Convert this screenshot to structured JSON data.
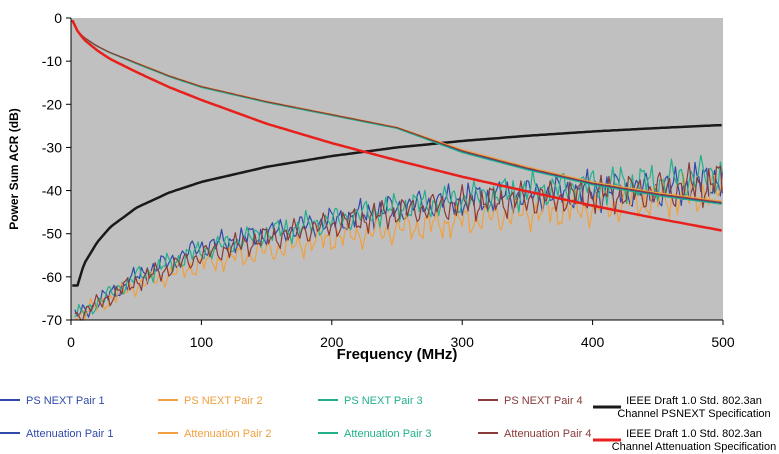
{
  "chart_data": {
    "type": "line",
    "title": "",
    "xlabel": "Frequency (MHz)",
    "ylabel": "Power Sum ACR (dB)",
    "xlim": [
      0,
      500
    ],
    "ylim": [
      -70,
      0
    ],
    "x_ticks": [
      "0",
      "100",
      "200",
      "300",
      "400",
      "500"
    ],
    "y_ticks": [
      "0",
      "-10",
      "-20",
      "-30",
      "-40",
      "-50",
      "-60",
      "-70"
    ],
    "plot_background": "#c0c0c0",
    "grid": false,
    "legend_position": "bottom",
    "series": [
      {
        "name": "PS NEXT Pair 1",
        "color": "#2f4aa8",
        "kind": "noisy",
        "trend": [
          [
            5,
            -69
          ],
          [
            50,
            -60
          ],
          [
            100,
            -53
          ],
          [
            150,
            -50
          ],
          [
            200,
            -47
          ],
          [
            250,
            -44
          ],
          [
            300,
            -42
          ],
          [
            350,
            -41
          ],
          [
            400,
            -40
          ],
          [
            450,
            -40
          ],
          [
            500,
            -37
          ]
        ]
      },
      {
        "name": "PS NEXT Pair 2",
        "color": "#f0a040",
        "kind": "noisy",
        "trend": [
          [
            5,
            -69
          ],
          [
            50,
            -62
          ],
          [
            100,
            -57
          ],
          [
            150,
            -54
          ],
          [
            200,
            -51
          ],
          [
            250,
            -49
          ],
          [
            300,
            -47
          ],
          [
            350,
            -45
          ],
          [
            400,
            -44
          ],
          [
            450,
            -42
          ],
          [
            500,
            -40
          ]
        ]
      },
      {
        "name": "PS NEXT Pair 3",
        "color": "#22b08a",
        "kind": "noisy",
        "trend": [
          [
            5,
            -69
          ],
          [
            50,
            -60
          ],
          [
            100,
            -54
          ],
          [
            150,
            -50
          ],
          [
            200,
            -47
          ],
          [
            250,
            -44
          ],
          [
            300,
            -42
          ],
          [
            350,
            -40
          ],
          [
            400,
            -39
          ],
          [
            450,
            -38
          ],
          [
            500,
            -36
          ]
        ]
      },
      {
        "name": "PS NEXT Pair 4",
        "color": "#8a3a3a",
        "kind": "noisy",
        "trend": [
          [
            5,
            -69
          ],
          [
            50,
            -61
          ],
          [
            100,
            -55
          ],
          [
            150,
            -51
          ],
          [
            200,
            -48
          ],
          [
            250,
            -45
          ],
          [
            300,
            -43
          ],
          [
            350,
            -42
          ],
          [
            400,
            -41
          ],
          [
            450,
            -40
          ],
          [
            500,
            -38
          ]
        ]
      },
      {
        "name": "IEEE Draft 1.0 Std. 802.3an Channel PSNEXT Specification",
        "color": "#1a1a1a",
        "kind": "smooth",
        "points": [
          [
            1,
            -62
          ],
          [
            5,
            -62
          ],
          [
            10,
            -57
          ],
          [
            20,
            -52
          ],
          [
            30,
            -48.5
          ],
          [
            50,
            -44
          ],
          [
            75,
            -40.5
          ],
          [
            100,
            -38
          ],
          [
            150,
            -34.5
          ],
          [
            200,
            -32
          ],
          [
            250,
            -30
          ],
          [
            300,
            -28.5
          ],
          [
            350,
            -27.3
          ],
          [
            400,
            -26.3
          ],
          [
            450,
            -25.5
          ],
          [
            500,
            -24.8
          ]
        ]
      },
      {
        "name": "Attenuation Pair 1",
        "color": "#2f4aa8",
        "kind": "smooth",
        "points": [
          [
            1,
            -0.5
          ],
          [
            5,
            -3
          ],
          [
            10,
            -4.5
          ],
          [
            20,
            -6.5
          ],
          [
            30,
            -8
          ],
          [
            50,
            -10.5
          ],
          [
            75,
            -13.5
          ],
          [
            100,
            -16
          ],
          [
            150,
            -19.5
          ],
          [
            200,
            -22.5
          ],
          [
            250,
            -25.5
          ],
          [
            300,
            -31
          ],
          [
            350,
            -35
          ],
          [
            400,
            -38.5
          ],
          [
            450,
            -41
          ],
          [
            500,
            -43
          ]
        ]
      },
      {
        "name": "Attenuation Pair 2",
        "color": "#f0a040",
        "kind": "smooth",
        "points": [
          [
            1,
            -0.5
          ],
          [
            5,
            -3
          ],
          [
            10,
            -4.5
          ],
          [
            20,
            -6.5
          ],
          [
            30,
            -8
          ],
          [
            50,
            -10.3
          ],
          [
            75,
            -13.3
          ],
          [
            100,
            -15.8
          ],
          [
            150,
            -19.3
          ],
          [
            200,
            -22.3
          ],
          [
            250,
            -25.3
          ],
          [
            300,
            -30.5
          ],
          [
            350,
            -34.5
          ],
          [
            400,
            -38
          ],
          [
            450,
            -40.5
          ],
          [
            500,
            -42.5
          ]
        ]
      },
      {
        "name": "Attenuation Pair 3",
        "color": "#22b08a",
        "kind": "smooth",
        "points": [
          [
            1,
            -0.5
          ],
          [
            5,
            -3
          ],
          [
            10,
            -4.6
          ],
          [
            20,
            -6.6
          ],
          [
            30,
            -8.1
          ],
          [
            50,
            -10.6
          ],
          [
            75,
            -13.6
          ],
          [
            100,
            -16.1
          ],
          [
            150,
            -19.6
          ],
          [
            200,
            -22.6
          ],
          [
            250,
            -25.6
          ],
          [
            300,
            -31.2
          ],
          [
            350,
            -35.2
          ],
          [
            400,
            -38.7
          ],
          [
            450,
            -41.2
          ],
          [
            500,
            -43.2
          ]
        ]
      },
      {
        "name": "Attenuation Pair 4",
        "color": "#8a3a3a",
        "kind": "smooth",
        "points": [
          [
            1,
            -0.5
          ],
          [
            5,
            -3
          ],
          [
            10,
            -4.5
          ],
          [
            20,
            -6.5
          ],
          [
            30,
            -8
          ],
          [
            50,
            -10.4
          ],
          [
            75,
            -13.4
          ],
          [
            100,
            -15.9
          ],
          [
            150,
            -19.4
          ],
          [
            200,
            -22.4
          ],
          [
            250,
            -25.4
          ],
          [
            300,
            -30.8
          ],
          [
            350,
            -34.8
          ],
          [
            400,
            -38.3
          ],
          [
            450,
            -40.8
          ],
          [
            500,
            -42.8
          ]
        ]
      },
      {
        "name": "IEEE Draft 1.0 Std. 802.3an Channel Attenuation Specification",
        "color": "#e8201c",
        "kind": "smooth",
        "points": [
          [
            1,
            -0.5
          ],
          [
            5,
            -3
          ],
          [
            10,
            -5
          ],
          [
            20,
            -7.5
          ],
          [
            30,
            -9.5
          ],
          [
            50,
            -12.5
          ],
          [
            75,
            -16
          ],
          [
            100,
            -19
          ],
          [
            150,
            -24.5
          ],
          [
            200,
            -29
          ],
          [
            250,
            -33
          ],
          [
            300,
            -36.8
          ],
          [
            350,
            -40.2
          ],
          [
            400,
            -43.5
          ],
          [
            450,
            -46.5
          ],
          [
            500,
            -49.3
          ]
        ]
      }
    ]
  },
  "legend": {
    "row1": [
      {
        "label": "PS NEXT Pair 1",
        "color": "#2f4aa8"
      },
      {
        "label": "PS NEXT Pair 2",
        "color": "#f0a040"
      },
      {
        "label": "PS NEXT Pair 3",
        "color": "#22b08a"
      },
      {
        "label": "PS NEXT Pair 4",
        "color": "#8a3a3a"
      }
    ],
    "row2": [
      {
        "label": "Attenuation Pair 1",
        "color": "#2f4aa8"
      },
      {
        "label": "Attenuation Pair 2",
        "color": "#f0a040"
      },
      {
        "label": "Attenuation Pair 3",
        "color": "#22b08a"
      },
      {
        "label": "Attenuation Pair 4",
        "color": "#8a3a3a"
      }
    ],
    "spec_psnext": {
      "line1": "IEEE Draft 1.0 Std. 802.3an",
      "line2": "Channel PSNEXT Specification",
      "color": "#1a1a1a"
    },
    "spec_atten": {
      "line1": "IEEE Draft 1.0 Std. 802.3an",
      "line2": "Channel Attenuation Specification",
      "color": "#e8201c"
    }
  }
}
